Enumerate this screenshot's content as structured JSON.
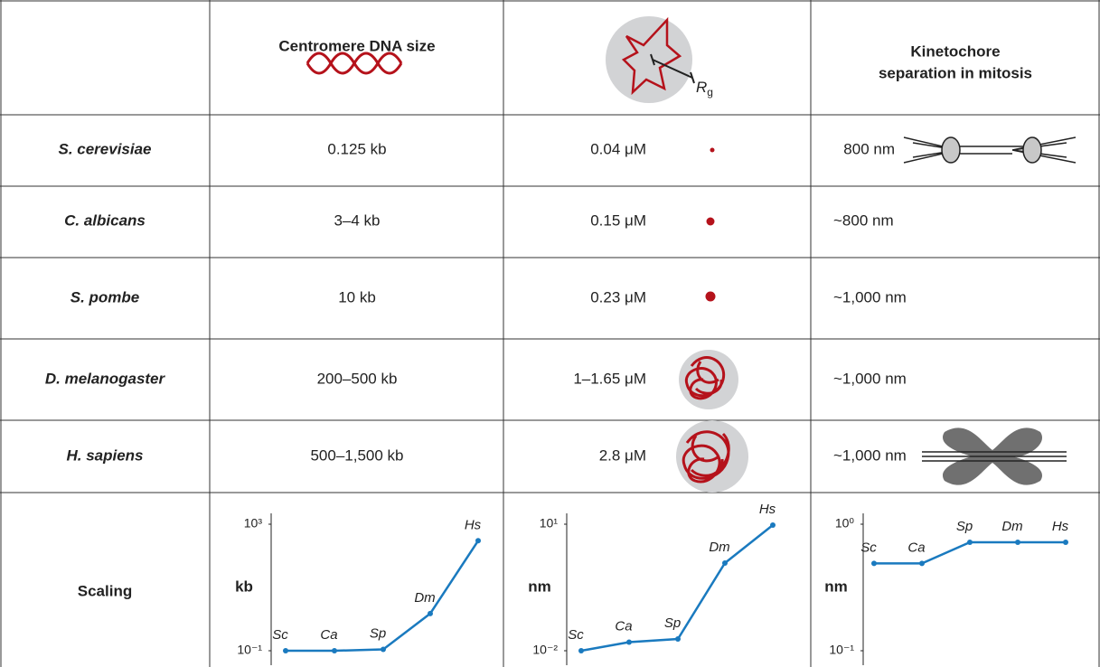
{
  "header": {
    "dna_size": "Centromere DNA size",
    "radius_label": {
      "main": "R",
      "subscript": "g"
    },
    "separation": [
      "Kinetochore",
      "separation in mitosis"
    ]
  },
  "rows": [
    {
      "species": "S. cerevisiae",
      "dna_size": "0.125 kb",
      "concentration": "0.04 μM",
      "separation": "800 nm"
    },
    {
      "species": "C. albicans",
      "dna_size": "3–4 kb",
      "concentration": "0.15 μM",
      "separation": "~800 nm"
    },
    {
      "species": "S. pombe",
      "dna_size": "10 kb",
      "concentration": "0.23 μM",
      "separation": "~1,000 nm"
    },
    {
      "species": "D. melanogaster",
      "dna_size": "200–500 kb",
      "concentration": "1–1.65 μM",
      "separation": "~1,000 nm"
    },
    {
      "species": "H. sapiens",
      "dna_size": "500–1,500 kb",
      "concentration": "2.8 μM",
      "separation": "~1,000 nm"
    }
  ],
  "scaling": {
    "label": "Scaling",
    "charts": [
      {
        "type": "line",
        "y_label": "kb",
        "log_scale": true,
        "ylim": [
          0.1,
          1000
        ],
        "yticks": [
          {
            "value": 0.1,
            "label": "10⁻¹"
          },
          {
            "value": 1000,
            "label": "10³"
          }
        ],
        "categories": [
          "Sc",
          "Ca",
          "Sp",
          "Dm",
          "Hs"
        ],
        "values": [
          0.1,
          0.1,
          0.11,
          1.5,
          300
        ],
        "color": "#1a7abf"
      },
      {
        "type": "line",
        "y_label": "nm",
        "log_scale": true,
        "ylim": [
          0.01,
          10
        ],
        "yticks": [
          {
            "value": 0.01,
            "label": "10⁻²"
          },
          {
            "value": 10,
            "label": "10¹"
          }
        ],
        "categories": [
          "Sc",
          "Ca",
          "Sp",
          "Dm",
          "Hs"
        ],
        "values": [
          0.01,
          0.016,
          0.019,
          1.2,
          9.5
        ],
        "color": "#1a7abf"
      },
      {
        "type": "line",
        "y_label": "nm",
        "log_scale": true,
        "ylim": [
          0.1,
          1
        ],
        "yticks": [
          {
            "value": 0.1,
            "label": "10⁻¹"
          },
          {
            "value": 1,
            "label": "10⁰"
          }
        ],
        "categories": [
          "Sc",
          "Ca",
          "Sp",
          "Dm",
          "Hs"
        ],
        "values": [
          0.49,
          0.49,
          0.72,
          0.72,
          0.72
        ],
        "color": "#1a7abf"
      }
    ]
  }
}
